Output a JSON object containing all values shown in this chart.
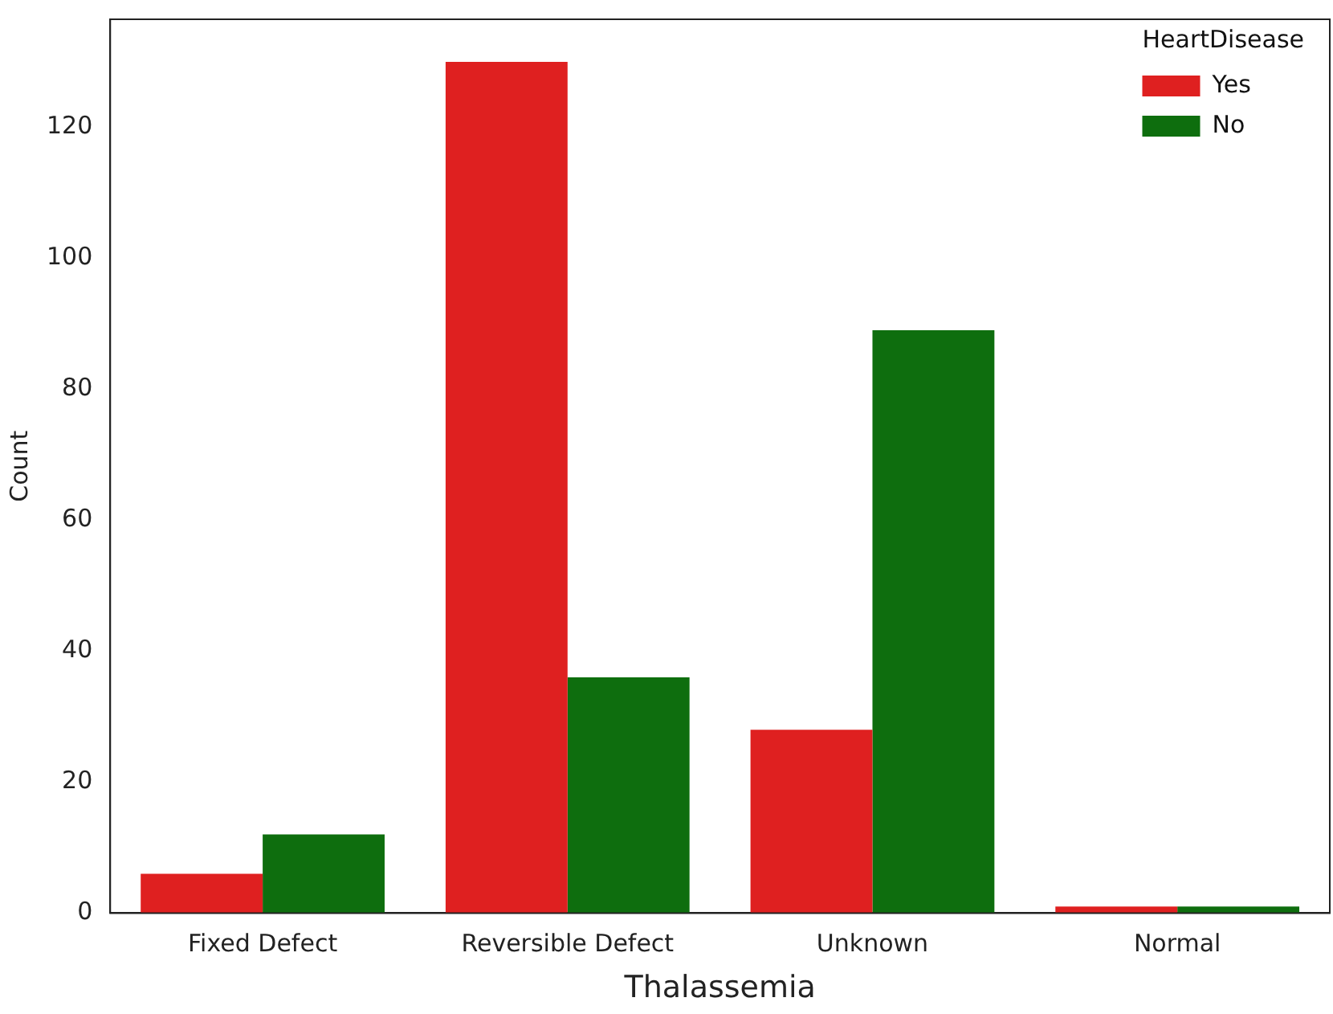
{
  "chart_data": {
    "type": "bar",
    "xlabel": "Thalassemia",
    "ylabel": "Count",
    "legend_title": "HeartDisease",
    "categories": [
      "Fixed Defect",
      "Reversible Defect",
      "Unknown",
      "Normal"
    ],
    "series": [
      {
        "name": "Yes",
        "color": "#df2020",
        "values": [
          6,
          130,
          28,
          1
        ]
      },
      {
        "name": "No",
        "color": "#0e6e0e",
        "values": [
          12,
          36,
          89,
          1
        ]
      }
    ],
    "ylim": [
      0,
      136.5
    ],
    "yticks": [
      0,
      20,
      40,
      60,
      80,
      100,
      120
    ],
    "grid": false,
    "legend": "top right"
  }
}
